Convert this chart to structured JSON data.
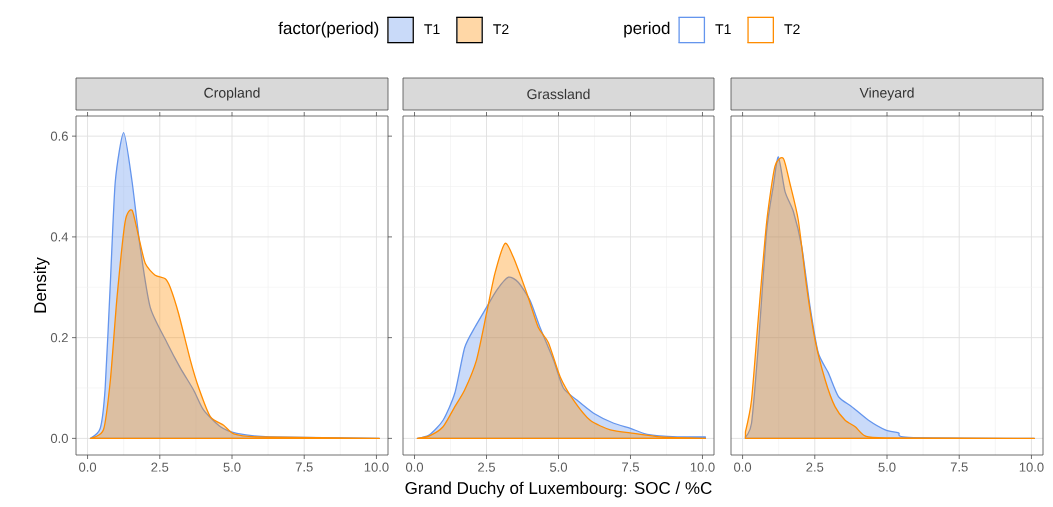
{
  "chart_data": [
    {
      "type": "area",
      "title": "Cropland",
      "ylabel": "Density",
      "legend": "top",
      "legend_title": "factor(period)",
      "grid": true,
      "xlim": [
        -0.4,
        10.4
      ],
      "ylim": [
        -0.033,
        0.64
      ],
      "xticks": [
        {
          "value": 0,
          "label": "0.0"
        },
        {
          "value": 2.5,
          "label": "2.5"
        },
        {
          "value": 5,
          "label": "5.0"
        },
        {
          "value": 7.5,
          "label": "7.5"
        },
        {
          "value": 10,
          "label": "10.0"
        }
      ],
      "yticks": [
        {
          "value": 0,
          "label": "0.0"
        },
        {
          "value": 0.2,
          "label": "0.2"
        },
        {
          "value": 0.4,
          "label": "0.4"
        },
        {
          "value": 0.6,
          "label": "0.6"
        }
      ],
      "series": [
        {
          "name": "T1",
          "color": "#6495ed",
          "x": [
            0.1,
            0.44,
            0.61,
            0.79,
            0.96,
            1.25,
            1.54,
            1.82,
            2.17,
            2.75,
            3.21,
            3.67,
            4.02,
            4.6,
            5.17,
            6.3,
            10.1
          ],
          "values": [
            0,
            0.02,
            0.1,
            0.31,
            0.51,
            0.607,
            0.51,
            0.38,
            0.26,
            0.19,
            0.14,
            0.096,
            0.056,
            0.023,
            0.01,
            0.003,
            0
          ]
        },
        {
          "name": "T2",
          "color": "#ff8c00",
          "x": [
            0.1,
            0.55,
            0.79,
            1.02,
            1.3,
            1.54,
            1.77,
            2.0,
            2.34,
            2.69,
            2.86,
            3.15,
            3.56,
            3.85,
            4.25,
            4.71,
            5.06,
            5.87,
            10.1
          ],
          "values": [
            0,
            0.017,
            0.116,
            0.28,
            0.43,
            0.453,
            0.4,
            0.347,
            0.324,
            0.317,
            0.3,
            0.248,
            0.155,
            0.1,
            0.043,
            0.026,
            0.009,
            0.003,
            0
          ]
        }
      ]
    },
    {
      "type": "area",
      "title": "Grassland",
      "xlabel": "Grand Duchy of Luxembourg: SOC / %C",
      "legend": "top",
      "legend_title": "period",
      "grid": true,
      "tick_labels": "x",
      "xlim": [
        -0.4,
        10.4
      ],
      "ylim": [
        -0.033,
        0.64
      ],
      "xticks": [
        {
          "value": 0,
          "label": "0.0"
        },
        {
          "value": 2.5,
          "label": "2.5"
        },
        {
          "value": 5,
          "label": "5.0"
        },
        {
          "value": 7.5,
          "label": "7.5"
        },
        {
          "value": 10,
          "label": "10.0"
        }
      ],
      "yticks": [
        {
          "value": 0,
          "label": null
        },
        {
          "value": 0.2,
          "label": null
        },
        {
          "value": 0.4,
          "label": null
        },
        {
          "value": 0.6,
          "label": null
        }
      ],
      "series": [
        {
          "name": "T1",
          "color": "#6495ed",
          "x": [
            0.1,
            0.52,
            0.99,
            1.4,
            1.74,
            2.09,
            2.5,
            2.85,
            3.26,
            3.6,
            4.01,
            4.36,
            4.83,
            5.17,
            5.64,
            6.22,
            6.92,
            7.5,
            8.08,
            9.13,
            10.1
          ],
          "values": [
            0,
            0.007,
            0.036,
            0.09,
            0.18,
            0.22,
            0.26,
            0.294,
            0.32,
            0.31,
            0.274,
            0.22,
            0.155,
            0.1,
            0.076,
            0.05,
            0.03,
            0.02,
            0.008,
            0.003,
            0.003
          ]
        },
        {
          "name": "T2",
          "color": "#ff8c00",
          "x": [
            0.1,
            0.52,
            0.99,
            1.4,
            1.74,
            2.15,
            2.5,
            2.79,
            3.14,
            3.43,
            3.9,
            4.3,
            4.65,
            5.06,
            5.52,
            6.1,
            6.8,
            7.62,
            8.55,
            10.1
          ],
          "values": [
            0,
            0.005,
            0.023,
            0.063,
            0.096,
            0.155,
            0.248,
            0.327,
            0.387,
            0.36,
            0.288,
            0.22,
            0.19,
            0.122,
            0.076,
            0.036,
            0.017,
            0.01,
            0.003,
            0
          ]
        }
      ]
    },
    {
      "type": "area",
      "title": "Vineyard",
      "grid": true,
      "tick_labels": "x",
      "xlim": [
        -0.4,
        10.4
      ],
      "ylim": [
        -0.033,
        0.64
      ],
      "xticks": [
        {
          "value": 0,
          "label": "0.0"
        },
        {
          "value": 2.5,
          "label": "2.5"
        },
        {
          "value": 5,
          "label": "5.0"
        },
        {
          "value": 7.5,
          "label": "7.5"
        },
        {
          "value": 10,
          "label": "10.0"
        }
      ],
      "yticks": [
        {
          "value": 0,
          "label": null
        },
        {
          "value": 0.2,
          "label": null
        },
        {
          "value": 0.4,
          "label": null
        },
        {
          "value": 0.6,
          "label": null
        }
      ],
      "series": [
        {
          "color": "#6495ed",
          "x": [
            0.1,
            0.31,
            0.54,
            0.83,
            1.06,
            1.24,
            1.47,
            1.76,
            2.05,
            2.34,
            2.62,
            2.97,
            3.32,
            3.78,
            4.36,
            4.94,
            5.4,
            5.75,
            10.1
          ],
          "values": [
            0.003,
            0.03,
            0.18,
            0.41,
            0.5,
            0.559,
            0.49,
            0.45,
            0.38,
            0.26,
            0.17,
            0.13,
            0.083,
            0.063,
            0.036,
            0.017,
            0.011,
            0.002,
            0
          ]
        },
        {
          "color": "#ff8c00",
          "x": [
            0.1,
            0.31,
            0.54,
            0.83,
            1.12,
            1.41,
            1.64,
            1.93,
            2.22,
            2.51,
            2.86,
            3.2,
            3.55,
            3.9,
            4.24,
            4.94,
            10.1
          ],
          "values": [
            0.013,
            0.076,
            0.235,
            0.427,
            0.54,
            0.556,
            0.506,
            0.433,
            0.3,
            0.195,
            0.116,
            0.063,
            0.036,
            0.023,
            0.005,
            0.001,
            0
          ]
        }
      ]
    }
  ]
}
